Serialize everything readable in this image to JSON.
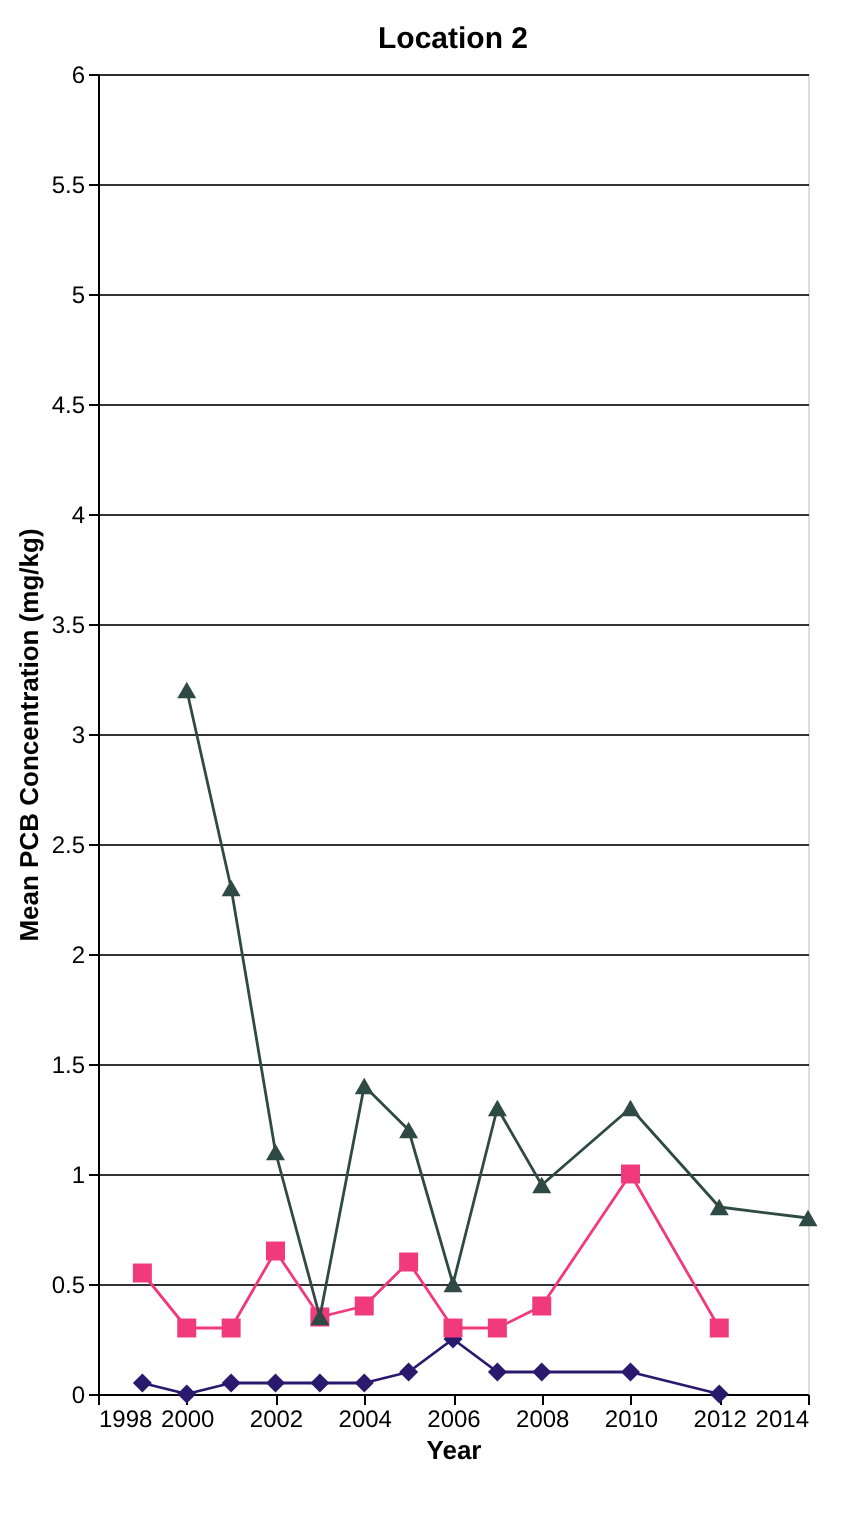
{
  "chart_data": {
    "type": "line",
    "title": "Location 2",
    "xlabel": "Year",
    "ylabel": "Mean PCB Concentration (mg/kg)",
    "xlim": [
      1998,
      2014
    ],
    "xticks": [
      1998,
      2000,
      2002,
      2004,
      2006,
      2008,
      2010,
      2012,
      2014
    ],
    "ylim": [
      0,
      6
    ],
    "yticks": [
      0,
      0.5,
      1,
      1.5,
      2,
      2.5,
      3,
      3.5,
      4,
      4.5,
      5,
      5.5,
      6
    ],
    "grid": "y",
    "series": [
      {
        "color": "#2f4a45",
        "marker": "triangle",
        "x": [
          2000,
          2001,
          2002,
          2003,
          2004,
          2005,
          2006,
          2007,
          2008,
          2010,
          2012,
          2014
        ],
        "values": [
          3.2,
          2.3,
          1.1,
          0.35,
          1.4,
          1.2,
          0.5,
          1.3,
          0.95,
          1.3,
          0.85,
          0.8
        ]
      },
      {
        "color": "#f03a7c",
        "marker": "square",
        "x": [
          1999,
          2000,
          2001,
          2002,
          2003,
          2004,
          2005,
          2006,
          2007,
          2008,
          2010,
          2012
        ],
        "values": [
          0.55,
          0.3,
          0.3,
          0.65,
          0.35,
          0.4,
          0.6,
          0.3,
          0.3,
          0.4,
          1.0,
          0.3
        ]
      },
      {
        "color": "#2a1a6e",
        "marker": "diamond",
        "x": [
          1999,
          2000,
          2001,
          2002,
          2003,
          2004,
          2005,
          2006,
          2007,
          2008,
          2010,
          2012
        ],
        "values": [
          0.05,
          0,
          0.05,
          0.05,
          0.05,
          0.05,
          0.1,
          0.25,
          0.1,
          0.1,
          0.1,
          0
        ]
      }
    ]
  }
}
